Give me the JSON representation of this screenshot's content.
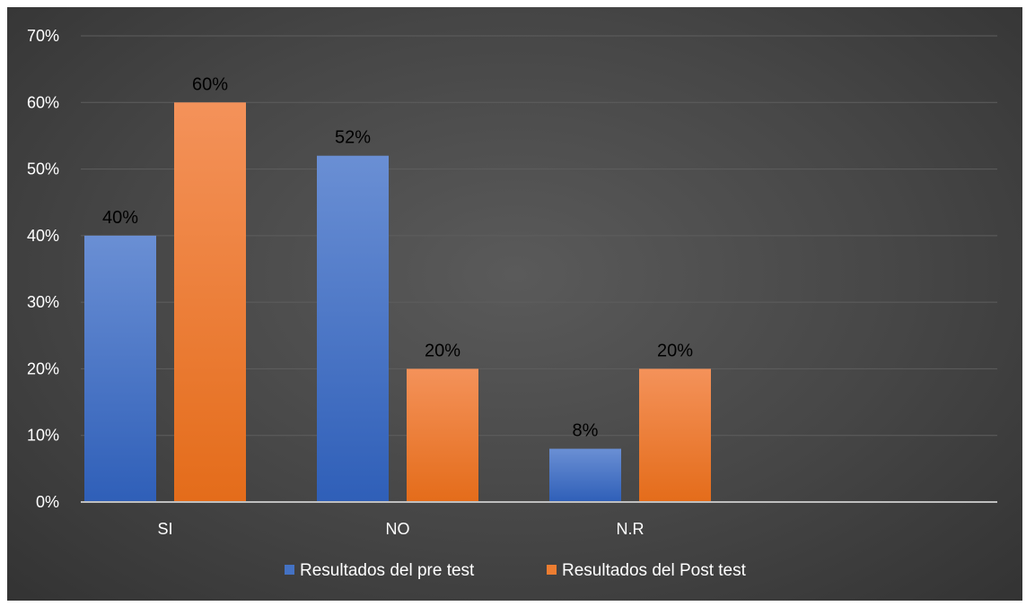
{
  "chart_data": {
    "type": "bar",
    "categories": [
      "SI",
      "NO",
      "N.R"
    ],
    "series": [
      {
        "name": "Resultados del pre test",
        "values": [
          40,
          52,
          8
        ],
        "labels": [
          "40%",
          "52%",
          "8%"
        ],
        "color": "#4472c4"
      },
      {
        "name": "Resultados del Post test",
        "values": [
          60,
          20,
          20
        ],
        "labels": [
          "60%",
          "20%",
          "20%"
        ],
        "color": "#ed7d31"
      }
    ],
    "ylim": [
      0,
      70
    ],
    "yticks": [
      "0%",
      "10%",
      "20%",
      "30%",
      "40%",
      "50%",
      "60%",
      "70%"
    ],
    "grid": true,
    "legend_position": "bottom",
    "background_color": "#404040"
  }
}
